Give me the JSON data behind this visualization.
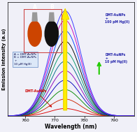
{
  "title": "",
  "xlabel": "Wavelength (nm)",
  "ylabel": "Emission Intensity (a.u)",
  "xlim": [
    754,
    797
  ],
  "ylim": [
    0,
    1.08
  ],
  "peak_wavelength": 773.5,
  "sigma": 5.2,
  "curve_colors": [
    "#dd0000",
    "#cc2200",
    "#008800",
    "#0000bb",
    "#8800bb",
    "#006688",
    "#009966",
    "#000000",
    "#0044ff",
    "#cc00bb",
    "#3333ff"
  ],
  "amplitudes": [
    0.07,
    0.16,
    0.25,
    0.34,
    0.43,
    0.52,
    0.61,
    0.71,
    0.81,
    0.91,
    1.0
  ],
  "label_dmt_aunps": "DMT-AuNPs",
  "label_10pm": "DMT-AuNPs\n+\n10 pM Hg(II)",
  "label_100pm": "DMT-AuNPs\n+\n100 pM Hg(II)",
  "inset_label": "A = DMT-AuNPs\nB = DMT-AuNPs\n+\n10 μM Hg(II)",
  "bg_color": "#f0f0f8",
  "inset_bg": "#d0d0d0",
  "inset_border": "#cc4444",
  "text_box_bg": "#dce8f8",
  "text_box_edge": "#7799cc",
  "flask_a_color": "#cc4400",
  "flask_b_color": "#111111",
  "arrow_color": "#ffee00",
  "arrow_edge": "#ccaa00",
  "green_arrow_color": "#22cc00",
  "label_color": "#2222aa",
  "dmt_label_color": "#cc0000"
}
